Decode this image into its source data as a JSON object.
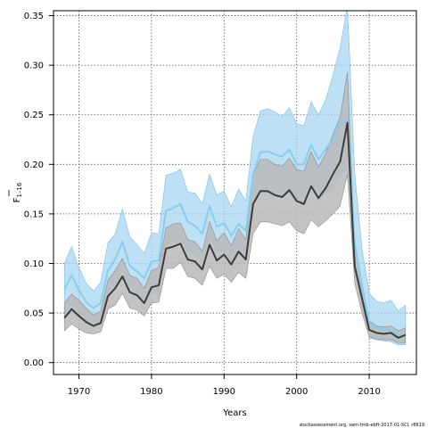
{
  "chart_data": {
    "type": "line",
    "xlabel": "Years",
    "ylabel_main": "F",
    "ylabel_sub": "1–16",
    "xlim": [
      1966.5,
      2016.5
    ],
    "ylim": [
      -0.012,
      0.355
    ],
    "x_ticks": [
      1970,
      1980,
      1990,
      2000,
      2010
    ],
    "y_ticks": [
      0.0,
      0.05,
      0.1,
      0.15,
      0.2,
      0.25,
      0.3,
      0.35
    ],
    "y_tick_labels": [
      "0.00",
      "0.05",
      "0.10",
      "0.15",
      "0.20",
      "0.25",
      "0.30",
      "0.35"
    ],
    "grid": true,
    "footer": "stockassessment.org, sam-tmb-ebft-2017-01-SCI, r8619",
    "x": [
      1968,
      1969,
      1970,
      1971,
      1972,
      1973,
      1974,
      1975,
      1976,
      1977,
      1978,
      1979,
      1980,
      1981,
      1982,
      1983,
      1984,
      1985,
      1986,
      1987,
      1988,
      1989,
      1990,
      1991,
      1992,
      1993,
      1994,
      1995,
      1996,
      1997,
      1998,
      1999,
      2000,
      2001,
      2002,
      2003,
      2004,
      2005,
      2006,
      2007,
      2008,
      2009,
      2010,
      2011,
      2012,
      2013,
      2014,
      2015
    ],
    "series": [
      {
        "role": "blue",
        "color": "#87cdef",
        "band_fill": "#a8d6f0",
        "values": [
          0.074,
          0.088,
          0.073,
          0.061,
          0.055,
          0.06,
          0.093,
          0.104,
          0.122,
          0.098,
          0.092,
          0.085,
          0.102,
          0.103,
          0.153,
          0.156,
          0.16,
          0.142,
          0.138,
          0.13,
          0.158,
          0.137,
          0.141,
          0.128,
          0.14,
          0.133,
          0.19,
          0.212,
          0.213,
          0.21,
          0.208,
          0.215,
          0.2,
          0.2,
          0.22,
          0.205,
          0.215,
          0.225,
          0.242,
          0.245,
          0.12,
          0.078,
          0.04,
          0.035,
          0.034,
          0.033,
          0.028,
          0.028
        ],
        "lower": [
          0.048,
          0.061,
          0.05,
          0.042,
          0.038,
          0.038,
          0.071,
          0.079,
          0.094,
          0.072,
          0.068,
          0.063,
          0.071,
          0.068,
          0.12,
          0.122,
          0.125,
          0.112,
          0.11,
          0.102,
          0.128,
          0.112,
          0.114,
          0.103,
          0.111,
          0.106,
          0.166,
          0.174,
          0.174,
          0.171,
          0.168,
          0.174,
          0.162,
          0.159,
          0.176,
          0.163,
          0.172,
          0.178,
          0.19,
          0.195,
          0.092,
          0.058,
          0.025,
          0.023,
          0.022,
          0.021,
          0.018,
          0.018
        ],
        "upper": [
          0.1,
          0.117,
          0.096,
          0.08,
          0.072,
          0.081,
          0.121,
          0.13,
          0.155,
          0.127,
          0.119,
          0.11,
          0.131,
          0.13,
          0.189,
          0.191,
          0.195,
          0.172,
          0.171,
          0.16,
          0.19,
          0.169,
          0.173,
          0.157,
          0.175,
          0.163,
          0.228,
          0.254,
          0.256,
          0.253,
          0.248,
          0.257,
          0.241,
          0.239,
          0.263,
          0.25,
          0.265,
          0.29,
          0.318,
          0.36,
          0.19,
          0.115,
          0.07,
          0.062,
          0.06,
          0.063,
          0.052,
          0.058
        ]
      },
      {
        "role": "black",
        "color": "#3c3c3c",
        "band_fill": "#b8b8b8",
        "values": [
          0.045,
          0.054,
          0.047,
          0.041,
          0.037,
          0.04,
          0.067,
          0.075,
          0.087,
          0.071,
          0.068,
          0.06,
          0.076,
          0.078,
          0.115,
          0.117,
          0.12,
          0.104,
          0.102,
          0.094,
          0.119,
          0.103,
          0.109,
          0.099,
          0.112,
          0.104,
          0.16,
          0.173,
          0.173,
          0.169,
          0.167,
          0.174,
          0.163,
          0.16,
          0.178,
          0.166,
          0.176,
          0.19,
          0.203,
          0.242,
          0.097,
          0.065,
          0.033,
          0.03,
          0.029,
          0.03,
          0.025,
          0.028
        ],
        "lower": [
          0.032,
          0.039,
          0.034,
          0.03,
          0.029,
          0.031,
          0.054,
          0.058,
          0.07,
          0.055,
          0.053,
          0.047,
          0.06,
          0.061,
          0.095,
          0.095,
          0.101,
          0.087,
          0.085,
          0.078,
          0.097,
          0.085,
          0.089,
          0.081,
          0.091,
          0.085,
          0.13,
          0.142,
          0.142,
          0.14,
          0.138,
          0.142,
          0.133,
          0.13,
          0.144,
          0.137,
          0.143,
          0.15,
          0.158,
          0.19,
          0.08,
          0.05,
          0.026,
          0.024,
          0.023,
          0.023,
          0.02,
          0.02
        ],
        "upper": [
          0.06,
          0.069,
          0.063,
          0.055,
          0.048,
          0.052,
          0.083,
          0.093,
          0.105,
          0.088,
          0.085,
          0.075,
          0.093,
          0.096,
          0.136,
          0.14,
          0.141,
          0.124,
          0.122,
          0.112,
          0.142,
          0.123,
          0.131,
          0.118,
          0.135,
          0.124,
          0.19,
          0.205,
          0.205,
          0.2,
          0.198,
          0.206,
          0.195,
          0.193,
          0.213,
          0.197,
          0.211,
          0.23,
          0.248,
          0.293,
          0.117,
          0.081,
          0.042,
          0.037,
          0.036,
          0.037,
          0.032,
          0.035
        ]
      }
    ]
  }
}
